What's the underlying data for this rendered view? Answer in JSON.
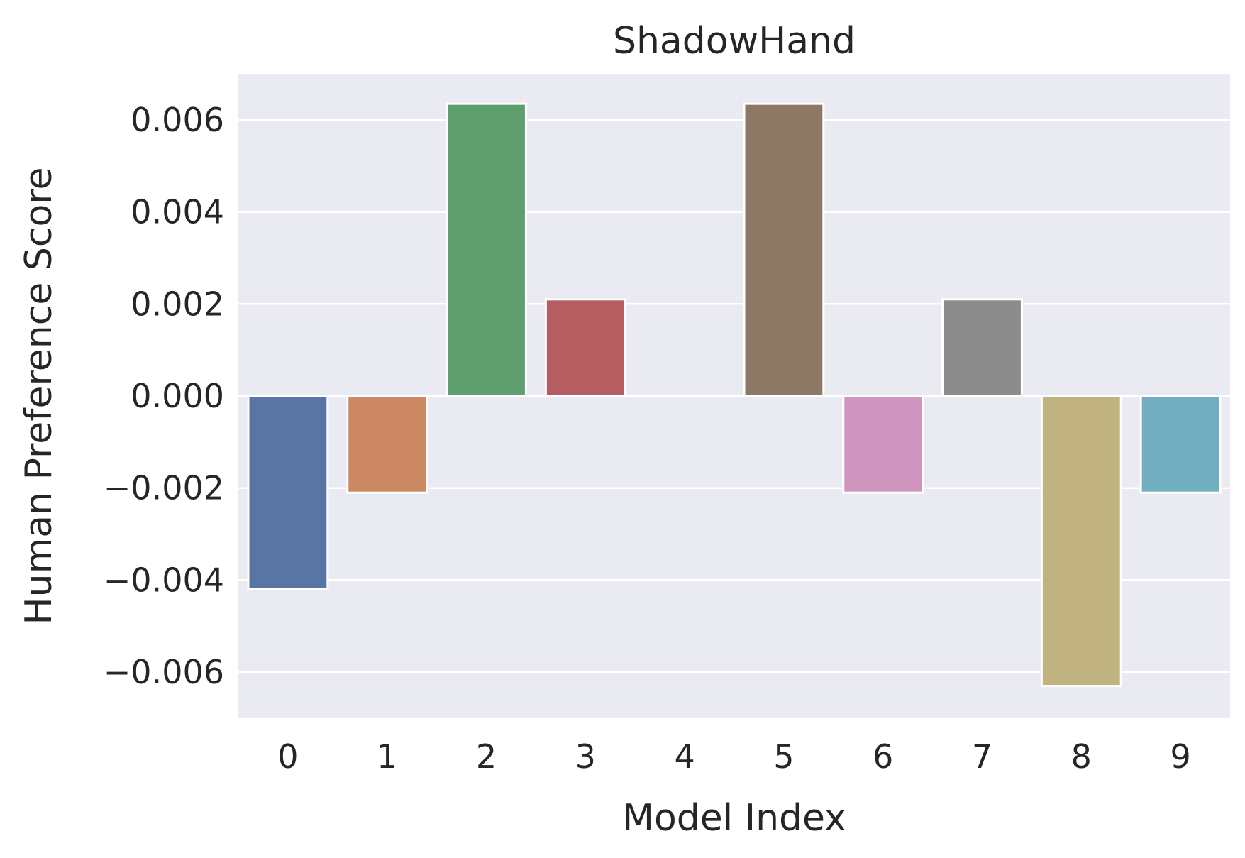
{
  "chart_data": {
    "type": "bar",
    "title": "ShadowHand",
    "xlabel": "Model Index",
    "ylabel": "Human Preference Score",
    "categories": [
      "0",
      "1",
      "2",
      "3",
      "4",
      "5",
      "6",
      "7",
      "8",
      "9"
    ],
    "values": [
      -0.0042,
      -0.0021,
      0.00635,
      0.0021,
      0.0,
      0.00635,
      -0.0021,
      0.0021,
      -0.0063,
      -0.0021
    ],
    "colors": [
      "#5975a4",
      "#cc8963",
      "#5f9e6e",
      "#b55d60",
      "#857aab",
      "#8d7866",
      "#d095bf",
      "#8c8c8c",
      "#c1b37f",
      "#71aec0"
    ],
    "yticks": [
      -0.006,
      -0.004,
      -0.002,
      0.0,
      0.002,
      0.004,
      0.006
    ],
    "ytick_labels": [
      "−0.006",
      "−0.004",
      "−0.002",
      "0.000",
      "0.002",
      "0.004",
      "0.006"
    ],
    "ylim": [
      -0.007,
      0.007
    ],
    "grid": true,
    "background": "#eaeaf2",
    "grid_color": "#ffffff"
  }
}
